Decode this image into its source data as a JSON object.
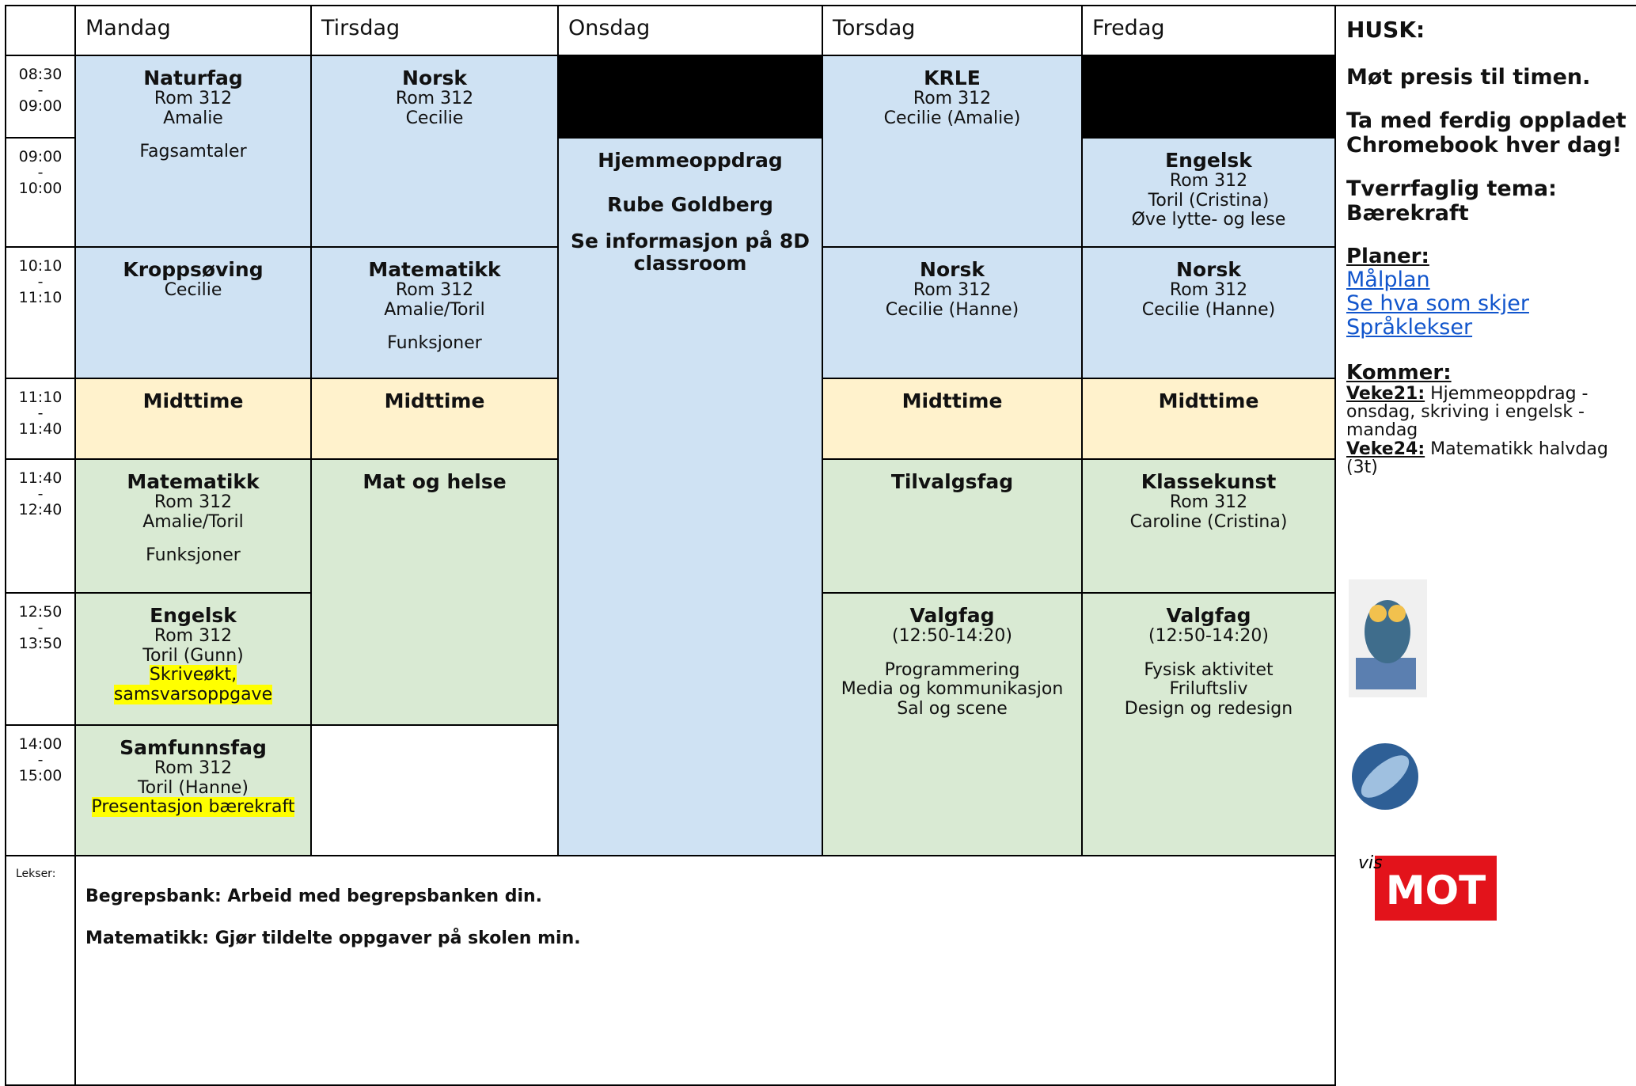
{
  "header": {
    "days": [
      "Mandag",
      "Tirsdag",
      "Onsdag",
      "Torsdag",
      "Fredag"
    ],
    "notes_title": "HUSK:"
  },
  "times": {
    "separator": "-",
    "slots": [
      {
        "start": "08:30",
        "end": "09:00"
      },
      {
        "start": "09:00",
        "end": "10:00"
      },
      {
        "start": "10:10",
        "end": "11:10"
      },
      {
        "start": "11:10",
        "end": "11:40"
      },
      {
        "start": "11:40",
        "end": "12:40"
      },
      {
        "start": "12:50",
        "end": "13:50"
      },
      {
        "start": "14:00",
        "end": "15:00"
      }
    ]
  },
  "cells": [
    {
      "title": "Naturfag",
      "lines": [
        "Rom 312",
        "Amalie"
      ],
      "extra": [
        "Fagsamtaler"
      ]
    },
    {
      "title": "Kroppsøving",
      "lines": [
        "Cecilie"
      ]
    },
    {
      "title": "Midttime"
    },
    {
      "title": "Matematikk",
      "lines": [
        "Rom 312",
        "Amalie/Toril"
      ],
      "extra": [
        "Funksjoner"
      ]
    },
    {
      "title": "Engelsk",
      "lines": [
        "Rom 312",
        "Toril (Gunn)"
      ],
      "highlighted": [
        "Skriveøkt, samsvarsoppgave"
      ]
    },
    {
      "title": "Samfunnsfag",
      "lines": [
        "Rom 312",
        "Toril (Hanne)"
      ],
      "highlighted": [
        "Presentasjon bærekraft"
      ]
    },
    {
      "title": "Norsk",
      "lines": [
        "Rom 312",
        "Cecilie"
      ]
    },
    {
      "title": "Matematikk",
      "lines": [
        "Rom 312",
        "Amalie/Toril"
      ],
      "extra": [
        "Funksjoner"
      ]
    },
    {
      "title": "Midttime"
    },
    {
      "title": "Mat og helse"
    },
    {
      "title": "Hjemmeoppdrag",
      "subtitles": [
        "Rube Goldberg",
        "Se informasjon på 8D classroom"
      ]
    },
    {
      "title": "KRLE",
      "lines": [
        "Rom 312",
        "Cecilie (Amalie)"
      ]
    },
    {
      "title": "Norsk",
      "lines": [
        "Rom 312",
        "Cecilie (Hanne)"
      ]
    },
    {
      "title": "Midttime"
    },
    {
      "title": "Tilvalgsfag"
    },
    {
      "title": "Valgfag",
      "lines": [
        "(12:50-14:20)"
      ],
      "extra": [
        "Programmering",
        "Media og kommunikasjon",
        "Sal og scene"
      ]
    },
    {
      "title": "Engelsk",
      "lines": [
        "Rom 312",
        "Toril (Cristina)",
        "Øve lytte- og lese"
      ]
    },
    {
      "title": "Norsk",
      "lines": [
        "Rom 312",
        "Cecilie (Hanne)"
      ]
    },
    {
      "title": "Midttime"
    },
    {
      "title": "Klassekunst",
      "lines": [
        "Rom 312",
        "Caroline (Cristina)"
      ]
    },
    {
      "title": "Valgfag",
      "lines": [
        "(12:50-14:20)"
      ],
      "extra": [
        "Fysisk aktivitet",
        "Friluftsliv",
        "Design og redesign"
      ]
    }
  ],
  "homework": {
    "label": "Lekser:",
    "items": [
      "Begrepsbank: Arbeid med begrepsbanken din.",
      "Matematikk: Gjør tildelte oppgaver på skolen min."
    ]
  },
  "notes": {
    "reminders": [
      "Møt presis til timen.",
      "Ta med ferdig oppladet Chromebook hver dag!",
      "Tverrfaglig tema: Bærekraft"
    ],
    "plans": {
      "title": "Planer:",
      "links": [
        "Målplan",
        "Se hva som skjer",
        "Språklekser"
      ]
    },
    "upcoming": {
      "title": "Kommer:",
      "items": [
        {
          "week": "Veke21:",
          "text": "Hjemmeoppdrag - onsdag, skriving i engelsk - mandag"
        },
        {
          "week": "Veke24:",
          "text": "Matematikk halvdag (3t)"
        }
      ]
    }
  },
  "logos": {
    "mot": {
      "prefix": "vis",
      "label": "MOT"
    }
  }
}
